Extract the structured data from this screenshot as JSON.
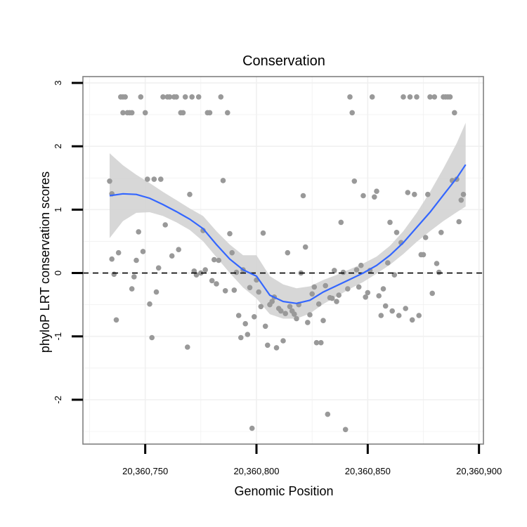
{
  "chart_data": {
    "type": "scatter",
    "title": "Conservation",
    "xlabel": "Genomic Position",
    "ylabel": "phyloP LRT conservation scores",
    "xlim": [
      20360722,
      20360902
    ],
    "ylim": [
      -2.7,
      3.1
    ],
    "xticks": [
      20360750,
      20360800,
      20360850,
      20360900
    ],
    "xtick_labels": [
      "20,360,750",
      "20,360,800",
      "20,360,850",
      "20,360,900"
    ],
    "yticks": [
      -2,
      -1,
      0,
      1,
      2,
      3
    ],
    "ytick_labels": [
      "-2",
      "-1",
      "0",
      "1",
      "2",
      "3"
    ],
    "grid": true,
    "reference_line": {
      "y": 0,
      "style": "dashed",
      "color": "#000000"
    },
    "colors": {
      "points": "#999999",
      "smooth": "#3366FF",
      "band": "#d3d3d3",
      "panel_border": "#808080",
      "grid": "#f0f0f0"
    },
    "points": [
      [
        20360734,
        1.45
      ],
      [
        20360735,
        0.22
      ],
      [
        20360735,
        1.25
      ],
      [
        20360736,
        -0.02
      ],
      [
        20360737,
        -0.74
      ],
      [
        20360738,
        0.32
      ],
      [
        20360739,
        2.78
      ],
      [
        20360740,
        2.53
      ],
      [
        20360740,
        2.78
      ],
      [
        20360741,
        2.78
      ],
      [
        20360742,
        2.53
      ],
      [
        20360743,
        2.53
      ],
      [
        20360744,
        2.53
      ],
      [
        20360744,
        -0.25
      ],
      [
        20360745,
        -0.06
      ],
      [
        20360746,
        0.2
      ],
      [
        20360747,
        0.65
      ],
      [
        20360748,
        2.78
      ],
      [
        20360749,
        0.34
      ],
      [
        20360750,
        2.53
      ],
      [
        20360751,
        1.48
      ],
      [
        20360752,
        -0.49
      ],
      [
        20360753,
        -1.02
      ],
      [
        20360754,
        1.48
      ],
      [
        20360755,
        -0.3
      ],
      [
        20360756,
        0.08
      ],
      [
        20360757,
        1.48
      ],
      [
        20360758,
        2.78
      ],
      [
        20360759,
        0.76
      ],
      [
        20360760,
        2.78
      ],
      [
        20360761,
        2.78
      ],
      [
        20360762,
        0.27
      ],
      [
        20360763,
        2.78
      ],
      [
        20360764,
        2.78
      ],
      [
        20360765,
        0.37
      ],
      [
        20360766,
        2.53
      ],
      [
        20360767,
        2.53
      ],
      [
        20360768,
        2.78
      ],
      [
        20360769,
        -1.17
      ],
      [
        20360770,
        1.24
      ],
      [
        20360771,
        2.78
      ],
      [
        20360772,
        0.03
      ],
      [
        20360773,
        -0.03
      ],
      [
        20360774,
        2.78
      ],
      [
        20360775,
        0.0
      ],
      [
        20360776,
        0.67
      ],
      [
        20360777,
        0.05
      ],
      [
        20360778,
        2.53
      ],
      [
        20360779,
        2.53
      ],
      [
        20360780,
        -0.12
      ],
      [
        20360781,
        0.21
      ],
      [
        20360782,
        -0.17
      ],
      [
        20360783,
        0.2
      ],
      [
        20360784,
        2.78
      ],
      [
        20360785,
        1.46
      ],
      [
        20360786,
        -0.28
      ],
      [
        20360787,
        2.53
      ],
      [
        20360788,
        0.62
      ],
      [
        20360789,
        0.32
      ],
      [
        20360790,
        -0.27
      ],
      [
        20360791,
        0.01
      ],
      [
        20360792,
        -0.67
      ],
      [
        20360793,
        -1.02
      ],
      [
        20360794,
        0.05
      ],
      [
        20360795,
        -0.8
      ],
      [
        20360796,
        -0.97
      ],
      [
        20360797,
        -0.23
      ],
      [
        20360798,
        -2.45
      ],
      [
        20360799,
        -0.69
      ],
      [
        20360800,
        -0.11
      ],
      [
        20360801,
        -0.3
      ],
      [
        20360802,
        -0.53
      ],
      [
        20360803,
        0.63
      ],
      [
        20360804,
        -0.84
      ],
      [
        20360805,
        -1.14
      ],
      [
        20360806,
        -0.5
      ],
      [
        20360807,
        -0.45
      ],
      [
        20360808,
        -0.38
      ],
      [
        20360809,
        -1.18
      ],
      [
        20360810,
        -0.56
      ],
      [
        20360811,
        -0.6
      ],
      [
        20360812,
        -1.07
      ],
      [
        20360813,
        -0.64
      ],
      [
        20360814,
        0.32
      ],
      [
        20360815,
        -0.53
      ],
      [
        20360816,
        -0.6
      ],
      [
        20360817,
        -0.65
      ],
      [
        20360818,
        -0.72
      ],
      [
        20360819,
        -0.5
      ],
      [
        20360820,
        0.0
      ],
      [
        20360821,
        1.22
      ],
      [
        20360822,
        0.41
      ],
      [
        20360823,
        -0.78
      ],
      [
        20360824,
        -0.66
      ],
      [
        20360825,
        -0.33
      ],
      [
        20360826,
        -0.22
      ],
      [
        20360827,
        -1.1
      ],
      [
        20360828,
        -0.49
      ],
      [
        20360829,
        -1.1
      ],
      [
        20360830,
        -0.75
      ],
      [
        20360831,
        -0.2
      ],
      [
        20360832,
        -2.23
      ],
      [
        20360833,
        -0.39
      ],
      [
        20360834,
        -0.4
      ],
      [
        20360835,
        0.04
      ],
      [
        20360836,
        -0.45
      ],
      [
        20360837,
        -0.35
      ],
      [
        20360838,
        0.8
      ],
      [
        20360839,
        0.01
      ],
      [
        20360840,
        -2.47
      ],
      [
        20360841,
        -0.25
      ],
      [
        20360842,
        2.78
      ],
      [
        20360843,
        2.53
      ],
      [
        20360844,
        1.45
      ],
      [
        20360845,
        0.05
      ],
      [
        20360846,
        -0.22
      ],
      [
        20360847,
        0.12
      ],
      [
        20360848,
        1.22
      ],
      [
        20360849,
        -0.38
      ],
      [
        20360850,
        -0.31
      ],
      [
        20360851,
        0.04
      ],
      [
        20360852,
        2.78
      ],
      [
        20360853,
        1.2
      ],
      [
        20360854,
        1.29
      ],
      [
        20360855,
        -0.36
      ],
      [
        20360856,
        -0.67
      ],
      [
        20360857,
        -0.25
      ],
      [
        20360858,
        -0.52
      ],
      [
        20360859,
        0.16
      ],
      [
        20360860,
        0.8
      ],
      [
        20360861,
        -0.6
      ],
      [
        20360862,
        -0.03
      ],
      [
        20360863,
        0.64
      ],
      [
        20360864,
        -0.67
      ],
      [
        20360865,
        0.48
      ],
      [
        20360866,
        2.78
      ],
      [
        20360867,
        -0.56
      ],
      [
        20360868,
        1.27
      ],
      [
        20360869,
        2.78
      ],
      [
        20360870,
        -0.74
      ],
      [
        20360871,
        1.24
      ],
      [
        20360872,
        2.78
      ],
      [
        20360873,
        -0.67
      ],
      [
        20360874,
        0.29
      ],
      [
        20360875,
        0.29
      ],
      [
        20360876,
        0.56
      ],
      [
        20360877,
        1.24
      ],
      [
        20360878,
        2.78
      ],
      [
        20360879,
        -0.32
      ],
      [
        20360880,
        2.78
      ],
      [
        20360881,
        0.15
      ],
      [
        20360882,
        0.01
      ],
      [
        20360883,
        0.64
      ],
      [
        20360884,
        2.78
      ],
      [
        20360885,
        2.78
      ],
      [
        20360886,
        2.78
      ],
      [
        20360887,
        2.78
      ],
      [
        20360888,
        1.46
      ],
      [
        20360889,
        2.53
      ],
      [
        20360890,
        1.48
      ],
      [
        20360891,
        0.81
      ],
      [
        20360892,
        1.15
      ],
      [
        20360893,
        1.24
      ]
    ],
    "smooth": {
      "x": [
        20360734,
        20360740,
        20360746,
        20360752,
        20360758,
        20360764,
        20360770,
        20360776,
        20360782,
        20360788,
        20360794,
        20360800,
        20360806,
        20360812,
        20360818,
        20360824,
        20360830,
        20360836,
        20360842,
        20360848,
        20360854,
        20360860,
        20360866,
        20360872,
        20360878,
        20360884,
        20360890,
        20360894
      ],
      "y": [
        1.22,
        1.25,
        1.24,
        1.18,
        1.08,
        0.97,
        0.85,
        0.7,
        0.45,
        0.22,
        0.05,
        -0.05,
        -0.35,
        -0.45,
        -0.48,
        -0.43,
        -0.3,
        -0.2,
        -0.1,
        0.0,
        0.12,
        0.28,
        0.48,
        0.72,
        0.96,
        1.23,
        1.5,
        1.71
      ],
      "lower": [
        0.55,
        0.82,
        0.95,
        0.96,
        0.9,
        0.8,
        0.68,
        0.5,
        0.25,
        0.0,
        -0.23,
        -0.4,
        -0.65,
        -0.72,
        -0.72,
        -0.64,
        -0.49,
        -0.37,
        -0.25,
        -0.14,
        -0.01,
        0.13,
        0.3,
        0.49,
        0.66,
        0.82,
        0.96,
        1.05
      ],
      "upper": [
        1.89,
        1.7,
        1.55,
        1.42,
        1.28,
        1.15,
        1.02,
        0.9,
        0.66,
        0.45,
        0.28,
        0.28,
        -0.05,
        -0.18,
        -0.24,
        -0.21,
        -0.11,
        -0.03,
        0.06,
        0.15,
        0.26,
        0.43,
        0.66,
        0.95,
        1.28,
        1.65,
        2.05,
        2.37
      ]
    }
  }
}
